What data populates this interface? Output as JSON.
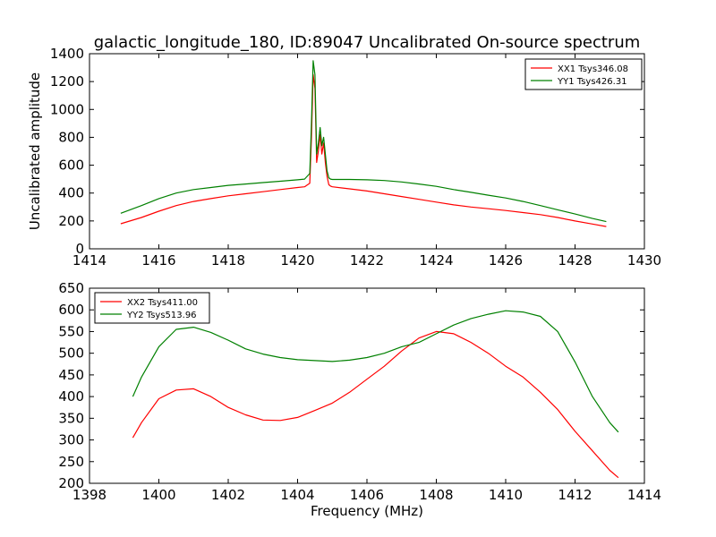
{
  "figure": {
    "title": "galactic_longitude_180, ID:89047 Uncalibrated On-source spectrum"
  },
  "chart_data": [
    {
      "type": "line",
      "title": "galactic_longitude_180, ID:89047 Uncalibrated On-source spectrum",
      "xlabel": "",
      "ylabel": "Uncalibrated amplitude",
      "xlim": [
        1414,
        1430
      ],
      "ylim": [
        0,
        1400
      ],
      "xticks": [
        "1414",
        "1416",
        "1418",
        "1420",
        "1422",
        "1424",
        "1426",
        "1428",
        "1430"
      ],
      "yticks": [
        "0",
        "200",
        "400",
        "600",
        "800",
        "1000",
        "1200",
        "1400"
      ],
      "grid": false,
      "legend_position": "top-right",
      "series": [
        {
          "name": "XX1 Tsys346.08",
          "color": "#ff0000",
          "x": [
            1414.9,
            1415.5,
            1416.0,
            1416.5,
            1417.0,
            1417.5,
            1418.0,
            1418.5,
            1419.0,
            1419.5,
            1420.0,
            1420.2,
            1420.35,
            1420.4,
            1420.45,
            1420.5,
            1420.55,
            1420.6,
            1420.65,
            1420.7,
            1420.75,
            1420.8,
            1420.85,
            1420.9,
            1420.95,
            1421.0,
            1421.5,
            1422.0,
            1422.5,
            1423.0,
            1423.5,
            1424.0,
            1424.5,
            1425.0,
            1425.5,
            1426.0,
            1426.5,
            1427.0,
            1427.5,
            1428.0,
            1428.5,
            1428.9
          ],
          "y": [
            180,
            225,
            270,
            310,
            340,
            360,
            380,
            395,
            410,
            425,
            440,
            445,
            470,
            800,
            1250,
            1150,
            620,
            700,
            820,
            680,
            760,
            620,
            520,
            460,
            450,
            445,
            430,
            415,
            395,
            375,
            355,
            335,
            315,
            300,
            288,
            275,
            260,
            245,
            225,
            200,
            178,
            160
          ]
        },
        {
          "name": "YY1 Tsys426.31",
          "color": "#008000",
          "x": [
            1414.9,
            1415.5,
            1416.0,
            1416.5,
            1417.0,
            1417.5,
            1418.0,
            1418.5,
            1419.0,
            1419.5,
            1420.0,
            1420.2,
            1420.35,
            1420.4,
            1420.45,
            1420.5,
            1420.55,
            1420.6,
            1420.65,
            1420.7,
            1420.75,
            1420.8,
            1420.85,
            1420.9,
            1420.95,
            1421.0,
            1421.5,
            1422.0,
            1422.5,
            1423.0,
            1423.5,
            1424.0,
            1424.5,
            1425.0,
            1425.5,
            1426.0,
            1426.5,
            1427.0,
            1427.5,
            1428.0,
            1428.5,
            1428.9
          ],
          "y": [
            255,
            310,
            360,
            400,
            425,
            440,
            455,
            465,
            475,
            485,
            495,
            500,
            540,
            900,
            1350,
            1250,
            680,
            760,
            870,
            740,
            800,
            680,
            560,
            510,
            500,
            498,
            498,
            495,
            490,
            480,
            465,
            448,
            425,
            405,
            385,
            365,
            340,
            310,
            280,
            250,
            218,
            195
          ]
        }
      ]
    },
    {
      "type": "line",
      "title": "",
      "xlabel": "Frequency (MHz)",
      "ylabel": "",
      "xlim": [
        1398,
        1414
      ],
      "ylim": [
        200,
        650
      ],
      "xticks": [
        "1398",
        "1400",
        "1402",
        "1404",
        "1406",
        "1408",
        "1410",
        "1412",
        "1414"
      ],
      "yticks": [
        "200",
        "250",
        "300",
        "350",
        "400",
        "450",
        "500",
        "550",
        "600",
        "650"
      ],
      "grid": false,
      "legend_position": "top-left",
      "series": [
        {
          "name": "XX2 Tsys411.00",
          "color": "#ff0000",
          "x": [
            1399.25,
            1399.5,
            1400.0,
            1400.5,
            1401.0,
            1401.5,
            1402.0,
            1402.5,
            1403.0,
            1403.5,
            1404.0,
            1404.5,
            1405.0,
            1405.5,
            1406.0,
            1406.5,
            1407.0,
            1407.5,
            1408.0,
            1408.5,
            1409.0,
            1409.5,
            1410.0,
            1410.5,
            1411.0,
            1411.5,
            1412.0,
            1412.5,
            1413.0,
            1413.25
          ],
          "y": [
            305,
            340,
            395,
            415,
            418,
            400,
            375,
            358,
            346,
            345,
            352,
            368,
            385,
            410,
            440,
            470,
            505,
            535,
            550,
            545,
            525,
            500,
            470,
            445,
            410,
            370,
            320,
            275,
            230,
            213
          ]
        },
        {
          "name": "YY2 Tsys513.96",
          "color": "#008000",
          "x": [
            1399.25,
            1399.5,
            1400.0,
            1400.5,
            1401.0,
            1401.5,
            1402.0,
            1402.5,
            1403.0,
            1403.5,
            1404.0,
            1404.5,
            1405.0,
            1405.5,
            1406.0,
            1406.5,
            1407.0,
            1407.5,
            1408.0,
            1408.5,
            1409.0,
            1409.5,
            1410.0,
            1410.5,
            1411.0,
            1411.5,
            1412.0,
            1412.5,
            1413.0,
            1413.25
          ],
          "y": [
            400,
            445,
            515,
            555,
            560,
            548,
            530,
            510,
            498,
            490,
            485,
            483,
            481,
            484,
            490,
            500,
            515,
            525,
            545,
            565,
            580,
            590,
            598,
            595,
            585,
            550,
            480,
            400,
            340,
            318
          ]
        }
      ]
    }
  ]
}
